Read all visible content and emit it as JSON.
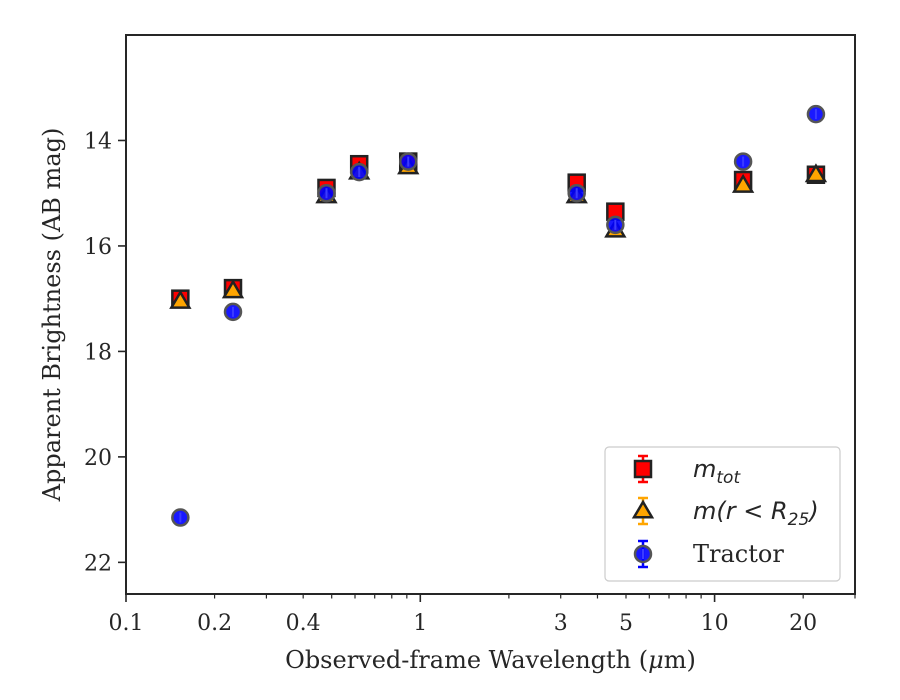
{
  "chart_data": {
    "type": "scatter",
    "title": "",
    "xlabel_main": "Observed-frame Wavelength (",
    "xlabel_mu": "μ",
    "xlabel_unit": "m)",
    "ylabel": "Apparent Brightness (AB mag)",
    "x_scale": "log",
    "y_inverted": true,
    "xlim": [
      0.1,
      30
    ],
    "ylim": [
      22.6,
      12.0
    ],
    "x_tick_labels": [
      {
        "value": 0.1,
        "label": "0.1"
      },
      {
        "value": 0.2,
        "label": "0.2"
      },
      {
        "value": 0.4,
        "label": "0.4"
      },
      {
        "value": 1,
        "label": "1"
      },
      {
        "value": 3,
        "label": "3"
      },
      {
        "value": 5,
        "label": "5"
      },
      {
        "value": 10,
        "label": "10"
      },
      {
        "value": 20,
        "label": "20"
      }
    ],
    "y_ticks": [
      {
        "value": 14,
        "label": "14"
      },
      {
        "value": 16,
        "label": "16"
      },
      {
        "value": 18,
        "label": "18"
      },
      {
        "value": 20,
        "label": "20"
      },
      {
        "value": 22,
        "label": "22"
      }
    ],
    "legend_position": "lower-right",
    "series": [
      {
        "key": "mtot",
        "legend_main": "m",
        "legend_sub": "tot",
        "marker": "square",
        "color": "#ff0000",
        "edge": "#222222",
        "points": [
          {
            "x": 0.153,
            "y": 17.0
          },
          {
            "x": 0.231,
            "y": 16.8
          },
          {
            "x": 0.48,
            "y": 14.9
          },
          {
            "x": 0.62,
            "y": 14.45
          },
          {
            "x": 0.91,
            "y": 14.4
          },
          {
            "x": 3.4,
            "y": 14.8
          },
          {
            "x": 4.6,
            "y": 15.35
          },
          {
            "x": 12.5,
            "y": 14.75
          },
          {
            "x": 22.1,
            "y": 14.65
          }
        ]
      },
      {
        "key": "mr25",
        "legend_main": "m",
        "legend_paren": "(r < R",
        "legend_sub": "25",
        "legend_close": ")",
        "marker": "triangle",
        "color": "#ffa500",
        "edge": "#222222",
        "points": [
          {
            "x": 0.153,
            "y": 17.05
          },
          {
            "x": 0.231,
            "y": 16.85
          },
          {
            "x": 0.48,
            "y": 15.05
          },
          {
            "x": 0.62,
            "y": 14.6
          },
          {
            "x": 0.91,
            "y": 14.5
          },
          {
            "x": 3.4,
            "y": 15.05
          },
          {
            "x": 4.6,
            "y": 15.7
          },
          {
            "x": 12.5,
            "y": 14.85
          },
          {
            "x": 22.1,
            "y": 14.65
          }
        ]
      },
      {
        "key": "tractor",
        "legend_label": "Tractor",
        "marker": "circle",
        "color": "#0000ff",
        "edge": "#555555",
        "points": [
          {
            "x": 0.153,
            "y": 21.15
          },
          {
            "x": 0.231,
            "y": 17.25
          },
          {
            "x": 0.48,
            "y": 15.0
          },
          {
            "x": 0.62,
            "y": 14.6
          },
          {
            "x": 0.91,
            "y": 14.4
          },
          {
            "x": 3.4,
            "y": 15.0
          },
          {
            "x": 4.6,
            "y": 15.6
          },
          {
            "x": 12.5,
            "y": 14.4
          },
          {
            "x": 22.1,
            "y": 13.5
          }
        ]
      }
    ]
  }
}
